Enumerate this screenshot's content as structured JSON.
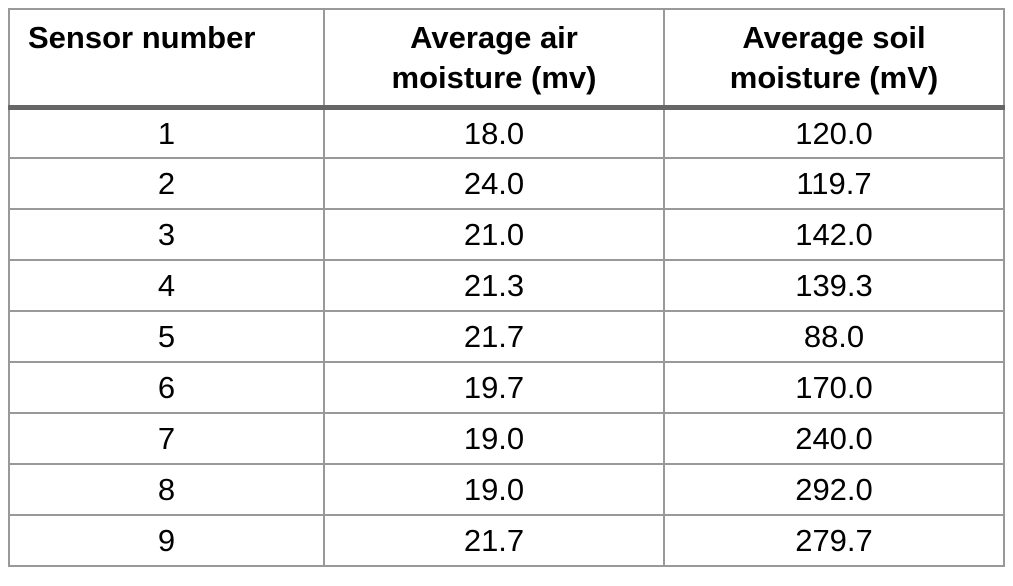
{
  "page": {
    "background": "#ffffff"
  },
  "colors": {
    "grid_line": "#999999",
    "header_underline": "#666666",
    "text": "#000000"
  },
  "table": {
    "header": {
      "sensor": {
        "line1": "Sensor number"
      },
      "air": {
        "line1": "Average air",
        "line2": "moisture (mv)"
      },
      "soil": {
        "line1": "Average soil",
        "line2": "moisture (mV)"
      }
    },
    "rows": [
      {
        "sensor": "1",
        "air": "18.0",
        "soil": "120.0"
      },
      {
        "sensor": "2",
        "air": "24.0",
        "soil": "119.7"
      },
      {
        "sensor": "3",
        "air": "21.0",
        "soil": "142.0"
      },
      {
        "sensor": "4",
        "air": "21.3",
        "soil": "139.3"
      },
      {
        "sensor": "5",
        "air": "21.7",
        "soil": "88.0"
      },
      {
        "sensor": "6",
        "air": "19.7",
        "soil": "170.0"
      },
      {
        "sensor": "7",
        "air": "19.0",
        "soil": "240.0"
      },
      {
        "sensor": "8",
        "air": "19.0",
        "soil": "292.0"
      },
      {
        "sensor": "9",
        "air": "21.7",
        "soil": "279.7"
      }
    ]
  }
}
